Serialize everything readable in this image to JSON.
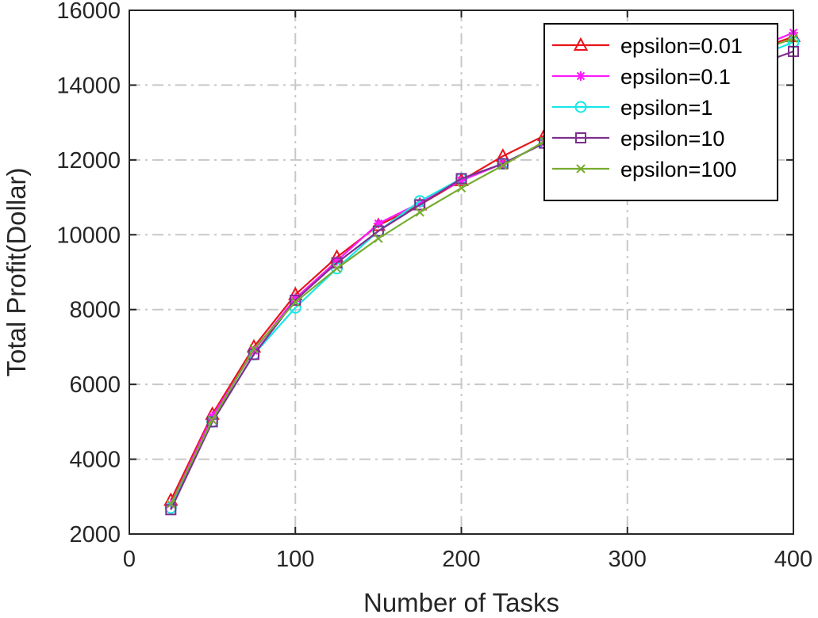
{
  "chart_data": {
    "type": "line",
    "title": "",
    "xlabel": "Number of Tasks",
    "ylabel": "Total Profit(Dollar)",
    "xlim": [
      0,
      400
    ],
    "ylim": [
      2000,
      16000
    ],
    "xticks": [
      0,
      100,
      200,
      300,
      400
    ],
    "yticks": [
      2000,
      4000,
      6000,
      8000,
      10000,
      12000,
      14000,
      16000
    ],
    "grid": true,
    "legend_position": "top-right",
    "x": [
      25,
      50,
      75,
      100,
      125,
      150,
      175,
      200,
      225,
      250,
      275,
      300,
      325,
      350,
      375,
      400
    ],
    "series": [
      {
        "name": "epsilon=0.01",
        "color": "#e8141a",
        "marker": "triangle",
        "values": [
          2900,
          5200,
          7000,
          8400,
          9400,
          10250,
          10800,
          11450,
          12100,
          12650,
          13150,
          13600,
          14050,
          14500,
          14900,
          15300
        ]
      },
      {
        "name": "epsilon=0.1",
        "color": "#ff1aff",
        "marker": "asterisk",
        "values": [
          2800,
          5150,
          6900,
          8300,
          9300,
          10300,
          10850,
          11450,
          11900,
          12450,
          12950,
          13450,
          13950,
          14450,
          14950,
          15400
        ]
      },
      {
        "name": "epsilon=1",
        "color": "#19e6e6",
        "marker": "circle",
        "values": [
          2700,
          5000,
          6800,
          8050,
          9100,
          10100,
          10900,
          11500,
          11900,
          12450,
          12900,
          13350,
          13850,
          14300,
          14700,
          15150
        ]
      },
      {
        "name": "epsilon=10",
        "color": "#7e2f8e",
        "marker": "square",
        "values": [
          2650,
          5000,
          6800,
          8250,
          9250,
          10100,
          10800,
          11500,
          11900,
          12450,
          12900,
          13300,
          13750,
          14150,
          14500,
          14900
        ]
      },
      {
        "name": "epsilon=100",
        "color": "#77ac30",
        "marker": "x",
        "values": [
          2800,
          5050,
          6950,
          8200,
          9100,
          9900,
          10600,
          11250,
          11850,
          12500,
          12950,
          13450,
          13950,
          14450,
          14850,
          15250
        ]
      }
    ]
  }
}
